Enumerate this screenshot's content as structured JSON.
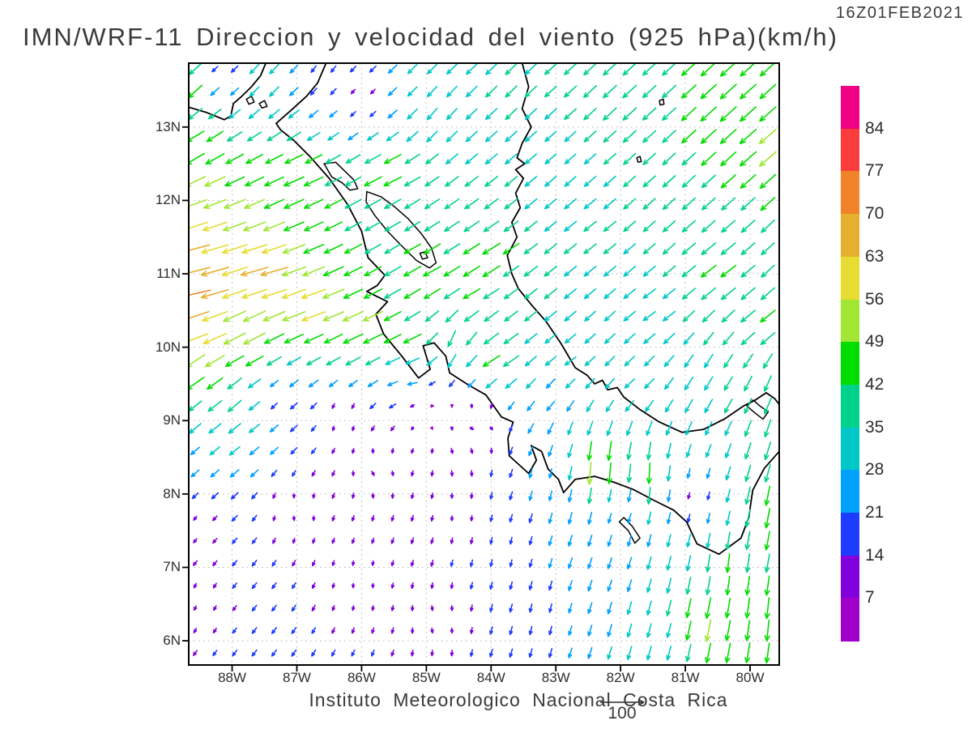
{
  "header": {
    "title": "IMN/WRF-11 Direccion y velocidad del viento (925 hPa)(km/h)",
    "timestamp": "16Z01FEB2021"
  },
  "footer": {
    "institute": "Instituto Meteorologico Nacional Costa Rica",
    "reference_label": "100"
  },
  "axes": {
    "lat": {
      "values": [
        13,
        12,
        11,
        10,
        9,
        8,
        7,
        6
      ],
      "labels": [
        "13N",
        "12N",
        "11N",
        "10N",
        "9N",
        "8N",
        "7N",
        "6N"
      ]
    },
    "lon": {
      "values": [
        88,
        87,
        86,
        85,
        84,
        83,
        82,
        81,
        80
      ],
      "labels": [
        "88W",
        "87W",
        "86W",
        "85W",
        "84W",
        "83W",
        "82W",
        "81W",
        "80W"
      ]
    }
  },
  "colorbar": {
    "labels_top_to_bottom": [
      "84",
      "77",
      "70",
      "63",
      "56",
      "49",
      "42",
      "35",
      "28",
      "21",
      "14",
      "7"
    ],
    "colors_top_to_bottom": [
      "#f00082",
      "#fa3c3c",
      "#f08228",
      "#e6af2d",
      "#e6dc32",
      "#a0e632",
      "#00dc00",
      "#00d28c",
      "#00c8c8",
      "#00a0ff",
      "#1e3cff",
      "#8200dc",
      "#a000c8"
    ]
  },
  "chart_data": {
    "type": "vector_field",
    "title": "IMN/WRF-11 Direccion y velocidad del viento (925 hPa)(km/h)",
    "valid_time": "16Z01FEB2021",
    "variable": "wind direction and speed",
    "level": "925 hPa",
    "units": "km/h",
    "lon_west_range": [
      88.67,
      79.55
    ],
    "lat_range": [
      5.67,
      13.87
    ],
    "grid_spacing_deg": 0.305,
    "reference_vector_kmh": 100,
    "speed_bin_edges_kmh": [
      7,
      14,
      21,
      28,
      35,
      42,
      49,
      56,
      63,
      70,
      77,
      84
    ],
    "bin_colors_low_to_high": [
      "#a000c8",
      "#8200dc",
      "#1e3cff",
      "#00a0ff",
      "#00c8c8",
      "#00d28c",
      "#00dc00",
      "#a0e632",
      "#e6dc32",
      "#e6af2d",
      "#f08228",
      "#fa3c3c",
      "#f00082"
    ],
    "wind_control_points_lon_lat_u_v": [
      [
        88.6,
        13.55,
        -32,
        -30
      ],
      [
        88.2,
        13.72,
        -10,
        -10
      ],
      [
        87.5,
        13.6,
        -20,
        -22
      ],
      [
        86.6,
        13.75,
        -10,
        -14
      ],
      [
        86.0,
        13.4,
        -7,
        -8
      ],
      [
        85.2,
        13.6,
        -20,
        -20
      ],
      [
        84.9,
        13.2,
        -22,
        -26
      ],
      [
        83.8,
        13.5,
        -25,
        -25
      ],
      [
        82.0,
        13.4,
        -30,
        -28
      ],
      [
        80.3,
        13.3,
        -36,
        -33
      ],
      [
        79.7,
        12.8,
        -38,
        -33
      ],
      [
        88.6,
        12.6,
        -42,
        -25
      ],
      [
        88.6,
        11.9,
        -52,
        -18
      ],
      [
        88.6,
        11.3,
        -66,
        -17
      ],
      [
        88.6,
        10.8,
        -72,
        -15
      ],
      [
        88.6,
        10.3,
        -63,
        -21
      ],
      [
        88.6,
        9.7,
        -42,
        -30
      ],
      [
        88.6,
        9.0,
        -26,
        -22
      ],
      [
        88.6,
        8.4,
        -17,
        -15
      ],
      [
        88.6,
        7.6,
        -6,
        -8
      ],
      [
        88.6,
        6.5,
        -4,
        -9
      ],
      [
        87.5,
        11.0,
        -63,
        -17
      ],
      [
        87.8,
        10.2,
        -50,
        -26
      ],
      [
        86.8,
        10.6,
        -56,
        -20
      ],
      [
        86.0,
        10.3,
        -48,
        -22
      ],
      [
        85.3,
        10.05,
        -42,
        -20
      ],
      [
        87.0,
        12.2,
        -45,
        -20
      ],
      [
        85.6,
        12.35,
        -40,
        -20
      ],
      [
        85.0,
        11.0,
        -40,
        -22
      ],
      [
        84.3,
        10.7,
        -38,
        -22
      ],
      [
        84.6,
        10.05,
        -15,
        -38
      ],
      [
        83.9,
        9.85,
        -40,
        -25
      ],
      [
        84.0,
        11.2,
        -40,
        -25
      ],
      [
        83.2,
        10.6,
        -28,
        -22
      ],
      [
        82.9,
        12.5,
        -24,
        -22
      ],
      [
        83.0,
        11.8,
        -26,
        -22
      ],
      [
        82.5,
        11.5,
        -28,
        -22
      ],
      [
        81.5,
        10.5,
        -28,
        -20
      ],
      [
        80.5,
        11.0,
        -34,
        -26
      ],
      [
        79.8,
        10.3,
        -34,
        -26
      ],
      [
        82.8,
        9.8,
        -25,
        -18
      ],
      [
        81.8,
        9.55,
        -22,
        -20
      ],
      [
        80.6,
        9.6,
        -18,
        -30
      ],
      [
        79.7,
        9.5,
        -15,
        -35
      ],
      [
        88.0,
        9.3,
        -30,
        -26
      ],
      [
        87.3,
        9.3,
        -12,
        -12
      ],
      [
        86.3,
        9.0,
        0,
        -9
      ],
      [
        85.2,
        9.55,
        -22,
        -3
      ],
      [
        84.9,
        9.15,
        9,
        2
      ],
      [
        84.2,
        8.95,
        10,
        -3
      ],
      [
        85.8,
        8.3,
        6,
        -9
      ],
      [
        87.0,
        7.8,
        2,
        -9
      ],
      [
        86.0,
        6.8,
        0,
        -9
      ],
      [
        84.8,
        6.3,
        2,
        -10
      ],
      [
        83.8,
        7.2,
        -3,
        -14
      ],
      [
        84.5,
        7.8,
        0,
        -10
      ],
      [
        84.5,
        8.5,
        4,
        -12
      ],
      [
        83.1,
        8.2,
        -4,
        -20
      ],
      [
        83.3,
        6.3,
        -4,
        -18
      ],
      [
        82.3,
        7.0,
        -8,
        -24
      ],
      [
        82.0,
        7.8,
        -6,
        -18
      ],
      [
        82.35,
        8.35,
        -3,
        -55
      ],
      [
        81.6,
        8.25,
        -2,
        -48
      ],
      [
        80.9,
        7.95,
        -3,
        -12
      ],
      [
        80.3,
        7.0,
        -5,
        -42
      ],
      [
        79.7,
        6.3,
        -5,
        -48
      ],
      [
        79.6,
        7.8,
        -8,
        -45
      ],
      [
        80.7,
        6.2,
        -10,
        -50
      ],
      [
        81.3,
        6.0,
        -8,
        -30
      ],
      [
        79.6,
        8.7,
        -12,
        -40
      ],
      [
        82.8,
        8.9,
        -10,
        -28
      ],
      [
        83.0,
        9.3,
        -18,
        -20
      ]
    ],
    "map": {
      "coastlines": [
        [
          [
            88.67,
            13.27
          ],
          [
            88.4,
            13.2
          ],
          [
            88.12,
            13.1
          ],
          [
            88.02,
            13.15
          ],
          [
            87.98,
            13.32
          ],
          [
            87.85,
            13.42
          ],
          [
            87.7,
            13.55
          ],
          [
            87.56,
            13.7
          ],
          [
            87.48,
            13.87
          ]
        ],
        [
          [
            86.55,
            13.87
          ],
          [
            86.68,
            13.6
          ],
          [
            86.85,
            13.42
          ],
          [
            87.1,
            13.22
          ],
          [
            87.32,
            13.05
          ],
          [
            87.25,
            12.96
          ],
          [
            87.05,
            12.82
          ],
          [
            86.8,
            12.6
          ],
          [
            86.5,
            12.3
          ],
          [
            86.22,
            11.95
          ],
          [
            86.0,
            11.58
          ],
          [
            85.9,
            11.22
          ],
          [
            85.64,
            10.98
          ],
          [
            85.76,
            10.84
          ],
          [
            85.92,
            10.76
          ],
          [
            85.6,
            10.62
          ],
          [
            85.78,
            10.45
          ],
          [
            85.66,
            10.18
          ],
          [
            85.38,
            9.88
          ],
          [
            85.12,
            9.58
          ],
          [
            84.94,
            9.7
          ],
          [
            85.05,
            10.02
          ],
          [
            84.88,
            10.06
          ],
          [
            84.7,
            9.88
          ],
          [
            84.64,
            9.65
          ],
          [
            84.34,
            9.48
          ],
          [
            84.08,
            9.35
          ],
          [
            83.84,
            9.05
          ],
          [
            83.66,
            8.98
          ],
          [
            83.74,
            8.76
          ],
          [
            83.72,
            8.52
          ],
          [
            83.42,
            8.28
          ],
          [
            83.3,
            8.46
          ],
          [
            83.38,
            8.66
          ],
          [
            83.22,
            8.58
          ],
          [
            83.12,
            8.34
          ],
          [
            82.96,
            8.2
          ],
          [
            82.88,
            8.02
          ],
          [
            82.7,
            8.2
          ],
          [
            82.4,
            8.24
          ],
          [
            82.1,
            8.16
          ],
          [
            81.8,
            8.06
          ],
          [
            81.5,
            7.92
          ],
          [
            81.18,
            7.78
          ],
          [
            80.98,
            7.62
          ],
          [
            80.82,
            7.32
          ],
          [
            80.48,
            7.18
          ],
          [
            80.14,
            7.4
          ],
          [
            80.02,
            7.68
          ],
          [
            79.96,
            8.05
          ],
          [
            79.78,
            8.35
          ],
          [
            79.55,
            8.58
          ]
        ],
        [
          [
            83.52,
            13.87
          ],
          [
            83.42,
            13.55
          ],
          [
            83.52,
            13.25
          ],
          [
            83.38,
            13.0
          ],
          [
            83.52,
            12.78
          ],
          [
            83.6,
            12.58
          ],
          [
            83.48,
            12.5
          ],
          [
            83.62,
            12.42
          ],
          [
            83.5,
            12.3
          ],
          [
            83.62,
            12.1
          ],
          [
            83.55,
            11.9
          ],
          [
            83.68,
            11.7
          ],
          [
            83.6,
            11.5
          ],
          [
            83.75,
            11.25
          ],
          [
            83.68,
            11.0
          ],
          [
            83.58,
            10.8
          ],
          [
            83.38,
            10.58
          ],
          [
            83.15,
            10.35
          ],
          [
            82.92,
            10.05
          ],
          [
            82.7,
            9.72
          ],
          [
            82.52,
            9.62
          ],
          [
            82.4,
            9.5
          ],
          [
            82.28,
            9.55
          ],
          [
            82.2,
            9.42
          ],
          [
            82.05,
            9.45
          ],
          [
            81.95,
            9.32
          ],
          [
            81.7,
            9.15
          ],
          [
            81.4,
            8.98
          ],
          [
            81.05,
            8.84
          ],
          [
            80.72,
            8.88
          ],
          [
            80.4,
            9.02
          ],
          [
            80.1,
            9.2
          ],
          [
            79.92,
            9.28
          ],
          [
            79.75,
            9.38
          ],
          [
            79.62,
            9.3
          ],
          [
            79.55,
            9.22
          ]
        ]
      ],
      "lakes": [
        [
          [
            86.58,
            12.5
          ],
          [
            86.4,
            12.52
          ],
          [
            86.26,
            12.4
          ],
          [
            86.12,
            12.28
          ],
          [
            86.06,
            12.16
          ],
          [
            86.18,
            12.14
          ],
          [
            86.3,
            12.24
          ],
          [
            86.46,
            12.32
          ]
        ],
        [
          [
            85.92,
            12.12
          ],
          [
            85.7,
            12.05
          ],
          [
            85.5,
            11.92
          ],
          [
            85.28,
            11.75
          ],
          [
            85.08,
            11.55
          ],
          [
            84.92,
            11.35
          ],
          [
            84.85,
            11.15
          ],
          [
            84.95,
            11.08
          ],
          [
            85.15,
            11.18
          ],
          [
            85.38,
            11.38
          ],
          [
            85.6,
            11.58
          ],
          [
            85.8,
            11.8
          ],
          [
            85.93,
            11.98
          ]
        ]
      ],
      "islands": [
        [
          [
            85.1,
            11.28
          ],
          [
            85.02,
            11.3
          ],
          [
            84.98,
            11.22
          ],
          [
            85.06,
            11.2
          ]
        ],
        [
          [
            87.78,
            13.38
          ],
          [
            87.7,
            13.42
          ],
          [
            87.66,
            13.34
          ],
          [
            87.74,
            13.31
          ]
        ],
        [
          [
            87.58,
            13.32
          ],
          [
            87.5,
            13.36
          ],
          [
            87.46,
            13.28
          ],
          [
            87.54,
            13.26
          ]
        ],
        [
          [
            82.02,
            7.62
          ],
          [
            81.88,
            7.5
          ],
          [
            81.78,
            7.33
          ],
          [
            81.7,
            7.4
          ],
          [
            81.82,
            7.56
          ],
          [
            81.95,
            7.68
          ]
        ],
        [
          [
            80.05,
            9.2
          ],
          [
            79.92,
            9.1
          ],
          [
            79.8,
            9.02
          ],
          [
            79.72,
            9.12
          ],
          [
            79.85,
            9.2
          ],
          [
            79.95,
            9.28
          ]
        ],
        [
          [
            81.4,
            13.36
          ],
          [
            81.34,
            13.38
          ],
          [
            81.33,
            13.31
          ],
          [
            81.39,
            13.3
          ]
        ],
        [
          [
            81.75,
            12.58
          ],
          [
            81.7,
            12.6
          ],
          [
            81.68,
            12.53
          ],
          [
            81.73,
            12.52
          ]
        ]
      ]
    }
  }
}
